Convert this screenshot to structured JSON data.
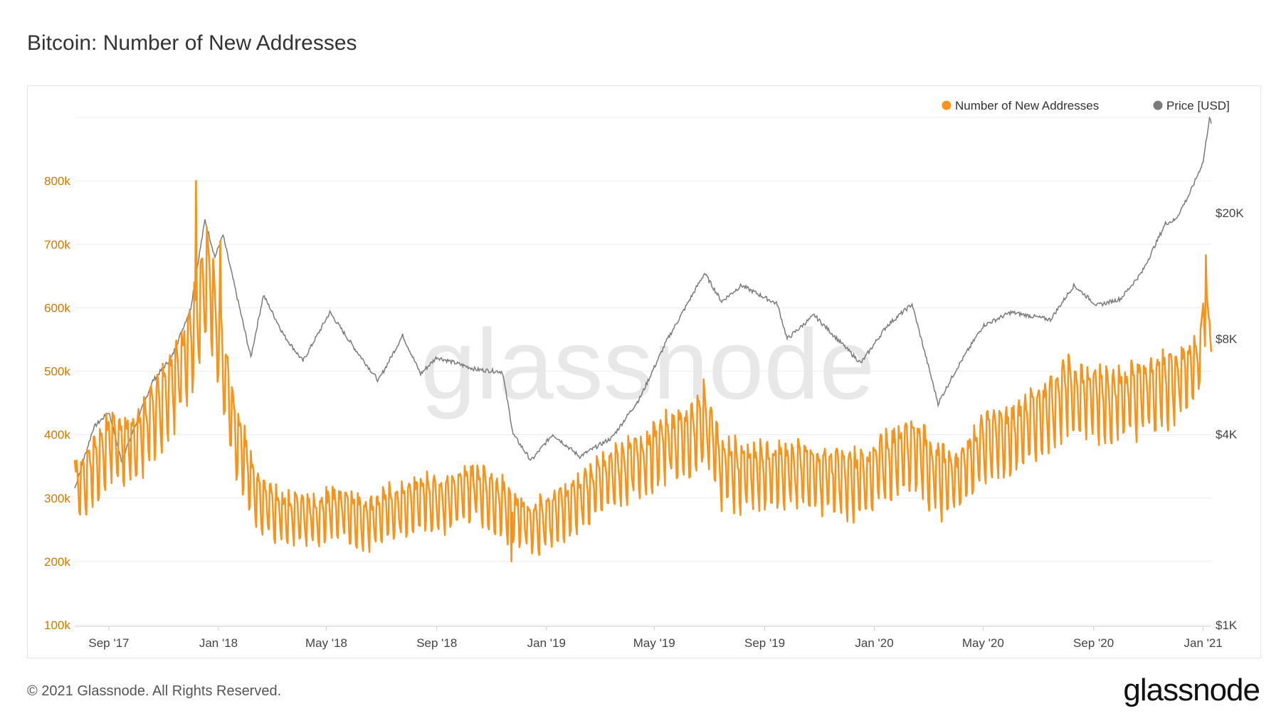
{
  "title": "Bitcoin: Number of New Addresses",
  "footer": "© 2021 Glassnode. All Rights Reserved.",
  "brand": "glassnode",
  "watermark": "glassnode",
  "colors": {
    "addresses": "#f7931a",
    "price": "#7b7b7b",
    "left_axis_text": "#cc7a00",
    "grid": "#ececec",
    "watermark": "#e8e8e8"
  },
  "chart_data": {
    "type": "line",
    "legend_position": "top-right",
    "grid": true,
    "left_axis": {
      "ylim": [
        100000,
        900000
      ],
      "ticks": [
        100000,
        200000,
        300000,
        400000,
        500000,
        600000,
        700000,
        800000
      ],
      "tick_labels": [
        "100k",
        "200k",
        "300k",
        "400k",
        "500k",
        "600k",
        "700k",
        "800k"
      ]
    },
    "right_axis": {
      "scale": "log",
      "ylim": [
        1000,
        40000
      ],
      "ticks": [
        1000,
        4000,
        8000,
        20000
      ],
      "tick_labels": [
        "$1K",
        "$4K",
        "$8K",
        "$20K"
      ]
    },
    "x_axis": {
      "start": "2017-07-25",
      "end": "2021-01-10",
      "ticks": [
        "2017-09-01",
        "2018-01-01",
        "2018-05-01",
        "2018-09-01",
        "2019-01-01",
        "2019-05-01",
        "2019-09-01",
        "2020-01-01",
        "2020-05-01",
        "2020-09-01",
        "2021-01-01"
      ],
      "tick_labels": [
        "Sep '17",
        "Jan '18",
        "May '18",
        "Sep '18",
        "Jan '19",
        "May '19",
        "Sep '19",
        "Jan '20",
        "May '20",
        "Sep '20",
        "Jan '21"
      ]
    },
    "series": [
      {
        "name": "Number of New Addresses",
        "axis": "left",
        "weekly_cycle": true,
        "points": [
          [
            "2017-07-25",
            320000,
            60000
          ],
          [
            "2017-08-15",
            350000,
            80000
          ],
          [
            "2017-09-01",
            390000,
            70000
          ],
          [
            "2017-10-01",
            390000,
            80000
          ],
          [
            "2017-11-01",
            460000,
            90000
          ],
          [
            "2017-12-01",
            540000,
            100000
          ],
          [
            "2017-12-20",
            650000,
            120000
          ],
          [
            "2018-01-01",
            560000,
            100000
          ],
          [
            "2018-01-20",
            400000,
            80000
          ],
          [
            "2018-02-15",
            300000,
            60000
          ],
          [
            "2018-03-15",
            275000,
            55000
          ],
          [
            "2018-04-15",
            270000,
            55000
          ],
          [
            "2018-05-15",
            285000,
            55000
          ],
          [
            "2018-06-15",
            265000,
            55000
          ],
          [
            "2018-07-15",
            285000,
            60000
          ],
          [
            "2018-08-15",
            300000,
            60000
          ],
          [
            "2018-09-15",
            300000,
            60000
          ],
          [
            "2018-10-15",
            320000,
            60000
          ],
          [
            "2018-11-15",
            290000,
            60000
          ],
          [
            "2018-12-15",
            260000,
            55000
          ],
          [
            "2019-01-15",
            280000,
            60000
          ],
          [
            "2019-02-15",
            310000,
            60000
          ],
          [
            "2019-03-15",
            340000,
            60000
          ],
          [
            "2019-04-15",
            360000,
            65000
          ],
          [
            "2019-05-15",
            390000,
            70000
          ],
          [
            "2019-06-15",
            400000,
            80000
          ],
          [
            "2019-06-26",
            430000,
            80000
          ],
          [
            "2019-07-15",
            350000,
            75000
          ],
          [
            "2019-08-15",
            340000,
            70000
          ],
          [
            "2019-09-15",
            345000,
            70000
          ],
          [
            "2019-10-15",
            345000,
            70000
          ],
          [
            "2019-11-15",
            335000,
            70000
          ],
          [
            "2019-12-15",
            330000,
            70000
          ],
          [
            "2020-01-15",
            360000,
            75000
          ],
          [
            "2020-02-15",
            380000,
            80000
          ],
          [
            "2020-03-12",
            340000,
            80000
          ],
          [
            "2020-04-01",
            330000,
            70000
          ],
          [
            "2020-05-01",
            390000,
            75000
          ],
          [
            "2020-06-01",
            400000,
            75000
          ],
          [
            "2020-07-01",
            430000,
            75000
          ],
          [
            "2020-08-01",
            470000,
            80000
          ],
          [
            "2020-09-01",
            460000,
            80000
          ],
          [
            "2020-10-01",
            460000,
            75000
          ],
          [
            "2020-11-01",
            470000,
            80000
          ],
          [
            "2020-12-01",
            490000,
            80000
          ],
          [
            "2020-12-28",
            520000,
            60000
          ],
          [
            "2021-01-03",
            610000,
            80000
          ],
          [
            "2021-01-10",
            550000,
            30000
          ]
        ],
        "peaks": [
          [
            "2017-12-07",
            800000
          ],
          [
            "2018-01-03",
            705000
          ],
          [
            "2018-11-23",
            200000
          ],
          [
            "2021-01-04",
            683000
          ]
        ]
      },
      {
        "name": "Price [USD]",
        "axis": "right",
        "points": [
          [
            "2017-07-25",
            2700
          ],
          [
            "2017-08-15",
            4200
          ],
          [
            "2017-09-01",
            4700
          ],
          [
            "2017-09-15",
            3300
          ],
          [
            "2017-10-01",
            4300
          ],
          [
            "2017-10-20",
            5900
          ],
          [
            "2017-11-10",
            7000
          ],
          [
            "2017-12-01",
            10000
          ],
          [
            "2017-12-17",
            19000
          ],
          [
            "2017-12-28",
            14500
          ],
          [
            "2018-01-06",
            17000
          ],
          [
            "2018-02-06",
            7000
          ],
          [
            "2018-02-20",
            11000
          ],
          [
            "2018-03-15",
            8200
          ],
          [
            "2018-04-05",
            6800
          ],
          [
            "2018-05-05",
            9700
          ],
          [
            "2018-06-01",
            7500
          ],
          [
            "2018-06-28",
            5900
          ],
          [
            "2018-07-25",
            8200
          ],
          [
            "2018-08-14",
            6200
          ],
          [
            "2018-09-01",
            7000
          ],
          [
            "2018-10-15",
            6400
          ],
          [
            "2018-11-13",
            6300
          ],
          [
            "2018-11-25",
            4000
          ],
          [
            "2018-12-15",
            3300
          ],
          [
            "2019-01-08",
            4000
          ],
          [
            "2019-02-07",
            3400
          ],
          [
            "2019-03-15",
            3900
          ],
          [
            "2019-04-15",
            5200
          ],
          [
            "2019-05-15",
            7900
          ],
          [
            "2019-06-26",
            12900
          ],
          [
            "2019-07-15",
            10500
          ],
          [
            "2019-08-06",
            11800
          ],
          [
            "2019-09-15",
            10300
          ],
          [
            "2019-09-26",
            8000
          ],
          [
            "2019-10-26",
            9500
          ],
          [
            "2019-12-17",
            6700
          ],
          [
            "2020-01-15",
            8800
          ],
          [
            "2020-02-12",
            10300
          ],
          [
            "2020-03-12",
            5000
          ],
          [
            "2020-04-01",
            6400
          ],
          [
            "2020-05-01",
            8800
          ],
          [
            "2020-06-01",
            9700
          ],
          [
            "2020-07-15",
            9200
          ],
          [
            "2020-08-10",
            11800
          ],
          [
            "2020-09-05",
            10200
          ],
          [
            "2020-10-01",
            10700
          ],
          [
            "2020-10-25",
            13000
          ],
          [
            "2020-11-20",
            18500
          ],
          [
            "2020-12-01",
            19000
          ],
          [
            "2020-12-17",
            23000
          ],
          [
            "2021-01-01",
            29000
          ],
          [
            "2021-01-08",
            40000
          ],
          [
            "2021-01-10",
            38000
          ]
        ]
      }
    ]
  }
}
